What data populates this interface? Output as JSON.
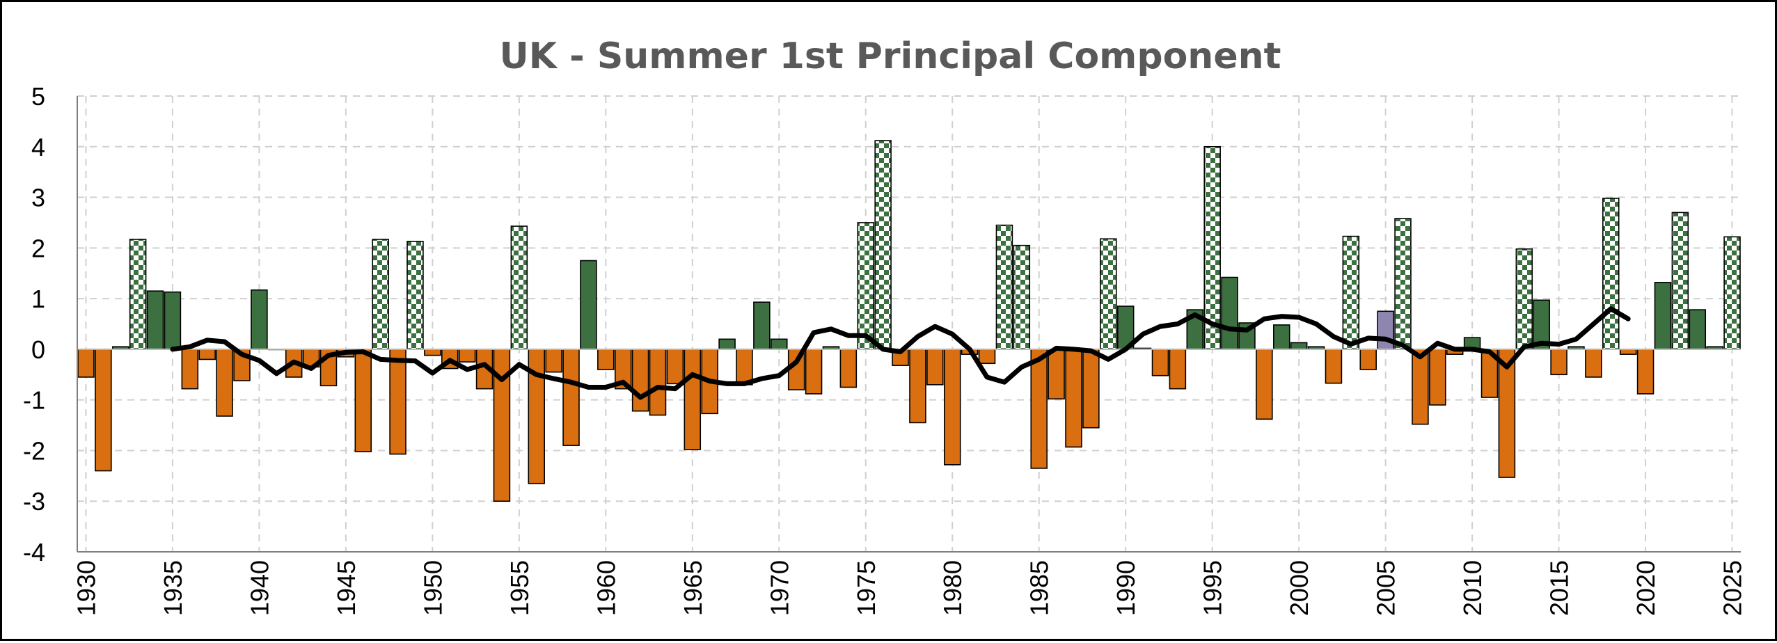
{
  "colors": {
    "positive": "#3c7040",
    "negative": "#d96f10",
    "neutral": "#8f86b0",
    "checker_light": "#ffffff",
    "smooth_line": "#000000",
    "grid": "#d0d0d0",
    "title": "#595959"
  },
  "chart_data": {
    "type": "bar",
    "title": "UK - Summer 1st Principal Component",
    "xlabel": "",
    "ylabel": "",
    "xlim": [
      1930,
      2025
    ],
    "ylim": [
      -4,
      5
    ],
    "y_ticks": [
      5,
      4,
      3,
      2,
      1,
      0,
      -1,
      -2,
      -3,
      -4
    ],
    "x_ticks": [
      1930,
      1935,
      1940,
      1945,
      1950,
      1955,
      1960,
      1965,
      1970,
      1975,
      1980,
      1985,
      1990,
      1995,
      2000,
      2005,
      2010,
      2015,
      2020,
      2025
    ],
    "grid": true,
    "legend": "none",
    "bar_styles": "solid positive = green, solid negative = orange, checkered green = exceptionally high (>2), purple = neutral year",
    "series": [
      {
        "kind": "bar",
        "x": [
          1930,
          1931,
          1932,
          1933,
          1934,
          1935,
          1936,
          1937,
          1938,
          1939,
          1940,
          1941,
          1942,
          1943,
          1944,
          1945,
          1946,
          1947,
          1948,
          1949,
          1950,
          1951,
          1952,
          1953,
          1954,
          1955,
          1956,
          1957,
          1958,
          1959,
          1960,
          1961,
          1962,
          1963,
          1964,
          1965,
          1966,
          1967,
          1968,
          1969,
          1970,
          1971,
          1972,
          1973,
          1974,
          1975,
          1976,
          1977,
          1978,
          1979,
          1980,
          1981,
          1982,
          1983,
          1984,
          1985,
          1986,
          1987,
          1988,
          1989,
          1990,
          1991,
          1992,
          1993,
          1994,
          1995,
          1996,
          1997,
          1998,
          1999,
          2000,
          2001,
          2002,
          2003,
          2004,
          2005,
          2006,
          2007,
          2008,
          2009,
          2010,
          2011,
          2012,
          2013,
          2014,
          2015,
          2016,
          2017,
          2018,
          2019,
          2020,
          2021,
          2022,
          2023,
          2024,
          2025
        ],
        "values": [
          -0.55,
          -2.4,
          0.05,
          2.17,
          1.15,
          1.13,
          -0.78,
          -0.2,
          -1.32,
          -0.62,
          1.17,
          0,
          -0.55,
          -0.35,
          -0.72,
          -0.15,
          -2.02,
          2.17,
          -2.07,
          2.13,
          -0.12,
          -0.38,
          -0.25,
          -0.78,
          -3.0,
          2.43,
          -2.65,
          -0.45,
          -1.9,
          1.75,
          -0.4,
          -0.78,
          -1.22,
          -1.3,
          -0.68,
          -1.98,
          -1.27,
          0.2,
          -0.7,
          0.93,
          0.2,
          -0.8,
          -0.88,
          0.05,
          -0.75,
          2.5,
          4.12,
          -0.32,
          -1.45,
          -0.7,
          -2.28,
          -0.1,
          -0.28,
          2.45,
          2.05,
          -2.35,
          -0.98,
          -1.93,
          -1.55,
          2.18,
          0.85,
          0.02,
          -0.52,
          -0.78,
          0.78,
          4.0,
          1.42,
          0.52,
          -1.38,
          0.48,
          0.13,
          0.05,
          -0.67,
          2.23,
          -0.4,
          0.75,
          2.58,
          -1.48,
          -1.1,
          -0.1,
          0.23,
          -0.95,
          -2.53,
          1.98,
          0.97,
          -0.5,
          0.05,
          -0.55,
          2.98,
          -0.1,
          -0.88,
          1.32,
          2.7,
          0.78,
          0.05,
          2.22
        ],
        "styles": [
          "n",
          "n",
          "p",
          "c",
          "p",
          "p",
          "n",
          "n",
          "n",
          "n",
          "p",
          "p",
          "n",
          "n",
          "n",
          "n",
          "n",
          "c",
          "n",
          "c",
          "n",
          "n",
          "n",
          "n",
          "n",
          "c",
          "n",
          "n",
          "n",
          "p",
          "n",
          "n",
          "n",
          "n",
          "n",
          "n",
          "n",
          "p",
          "n",
          "p",
          "p",
          "n",
          "n",
          "p",
          "n",
          "c",
          "c",
          "n",
          "n",
          "n",
          "n",
          "n",
          "n",
          "c",
          "c",
          "n",
          "n",
          "n",
          "n",
          "c",
          "p",
          "p",
          "n",
          "n",
          "p",
          "c",
          "p",
          "p",
          "n",
          "p",
          "p",
          "p",
          "n",
          "c",
          "n",
          "u",
          "c",
          "n",
          "n",
          "n",
          "p",
          "n",
          "n",
          "c",
          "p",
          "n",
          "p",
          "n",
          "c",
          "n",
          "n",
          "p",
          "c",
          "p",
          "p",
          "c"
        ]
      },
      {
        "kind": "line",
        "name": "",
        "x": [
          1935,
          1936,
          1937,
          1938,
          1939,
          1940,
          1941,
          1942,
          1943,
          1944,
          1945,
          1946,
          1947,
          1948,
          1949,
          1950,
          1951,
          1952,
          1953,
          1954,
          1955,
          1956,
          1957,
          1958,
          1959,
          1960,
          1961,
          1962,
          1963,
          1964,
          1965,
          1966,
          1967,
          1968,
          1969,
          1970,
          1971,
          1972,
          1973,
          1974,
          1975,
          1976,
          1977,
          1978,
          1979,
          1980,
          1981,
          1982,
          1983,
          1984,
          1985,
          1986,
          1987,
          1988,
          1989,
          1990,
          1991,
          1992,
          1993,
          1994,
          1995,
          1996,
          1997,
          1998,
          1999,
          2000,
          2001,
          2002,
          2003,
          2004,
          2005,
          2006,
          2007,
          2008,
          2009,
          2010,
          2011,
          2012,
          2013,
          2014,
          2015,
          2016,
          2017,
          2018,
          2019
        ],
        "values": [
          0.0,
          0.05,
          0.18,
          0.15,
          -0.1,
          -0.22,
          -0.48,
          -0.25,
          -0.38,
          -0.12,
          -0.06,
          -0.05,
          -0.2,
          -0.22,
          -0.23,
          -0.47,
          -0.22,
          -0.4,
          -0.3,
          -0.6,
          -0.3,
          -0.5,
          -0.58,
          -0.65,
          -0.75,
          -0.75,
          -0.65,
          -0.95,
          -0.75,
          -0.78,
          -0.5,
          -0.63,
          -0.68,
          -0.68,
          -0.58,
          -0.52,
          -0.25,
          0.33,
          0.4,
          0.27,
          0.27,
          0.0,
          -0.05,
          0.25,
          0.45,
          0.3,
          0.0,
          -0.55,
          -0.65,
          -0.35,
          -0.2,
          0.02,
          0.0,
          -0.03,
          -0.2,
          0.0,
          0.3,
          0.45,
          0.5,
          0.68,
          0.5,
          0.4,
          0.38,
          0.6,
          0.65,
          0.63,
          0.5,
          0.25,
          0.1,
          0.22,
          0.2,
          0.08,
          -0.15,
          0.12,
          0.0,
          0.0,
          -0.05,
          -0.35,
          0.05,
          0.12,
          0.1,
          0.2,
          0.5,
          0.8,
          0.6
        ]
      }
    ]
  }
}
